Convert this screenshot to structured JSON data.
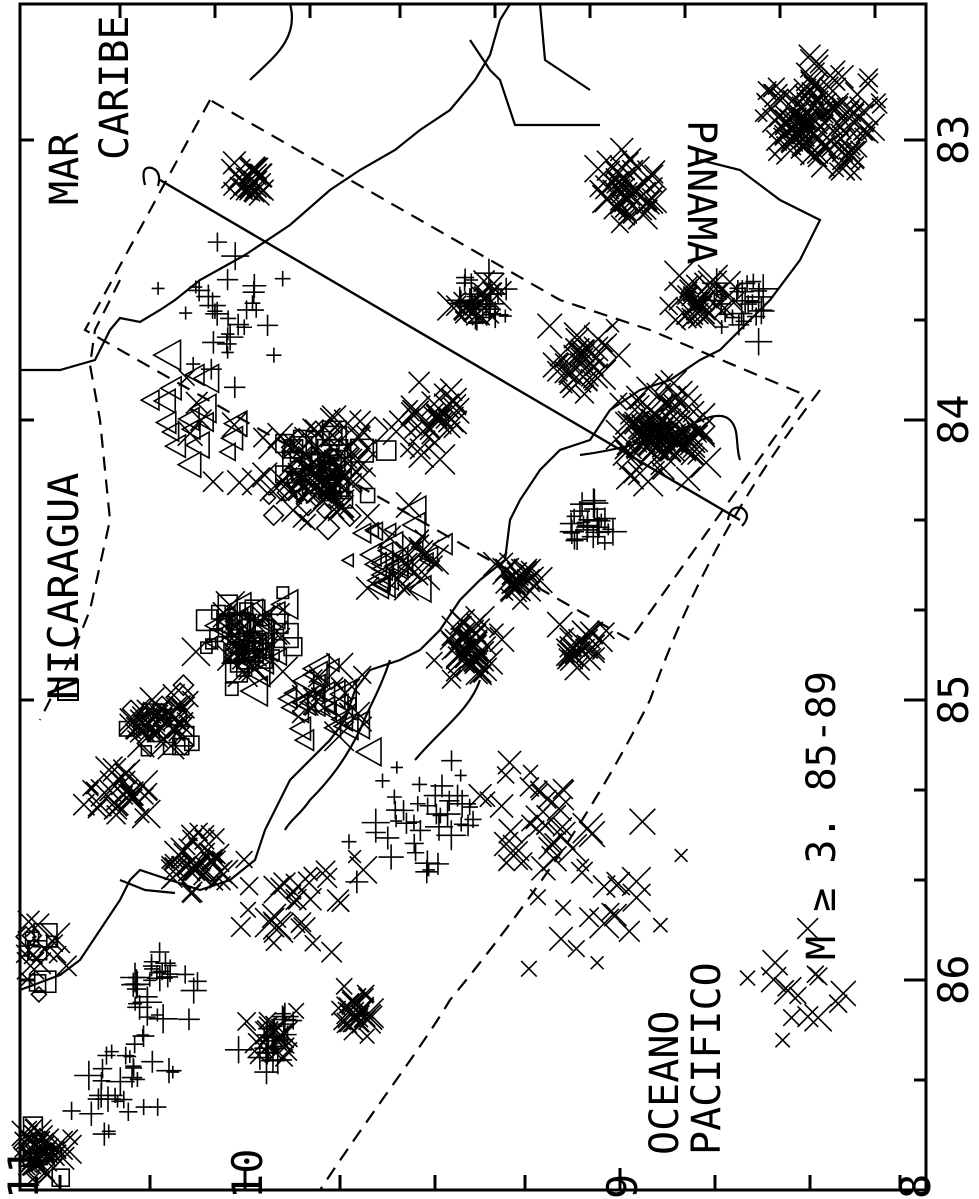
{
  "map": {
    "labels": {
      "nicaragua": "NICARAGUA",
      "mar": "MAR",
      "caribe": "CARIBE",
      "panama": "PANAMA",
      "oceano": "OCEANO",
      "pacifico": "PACIFICO",
      "magnitude": "M ≥ 3. 85-89"
    },
    "legend_symbol": "square-marker",
    "axes": {
      "longitude_ticks": [
        "83",
        "84",
        "85",
        "86"
      ],
      "latitude_ticks": [
        "11",
        "10",
        "9",
        "8"
      ]
    }
  }
}
